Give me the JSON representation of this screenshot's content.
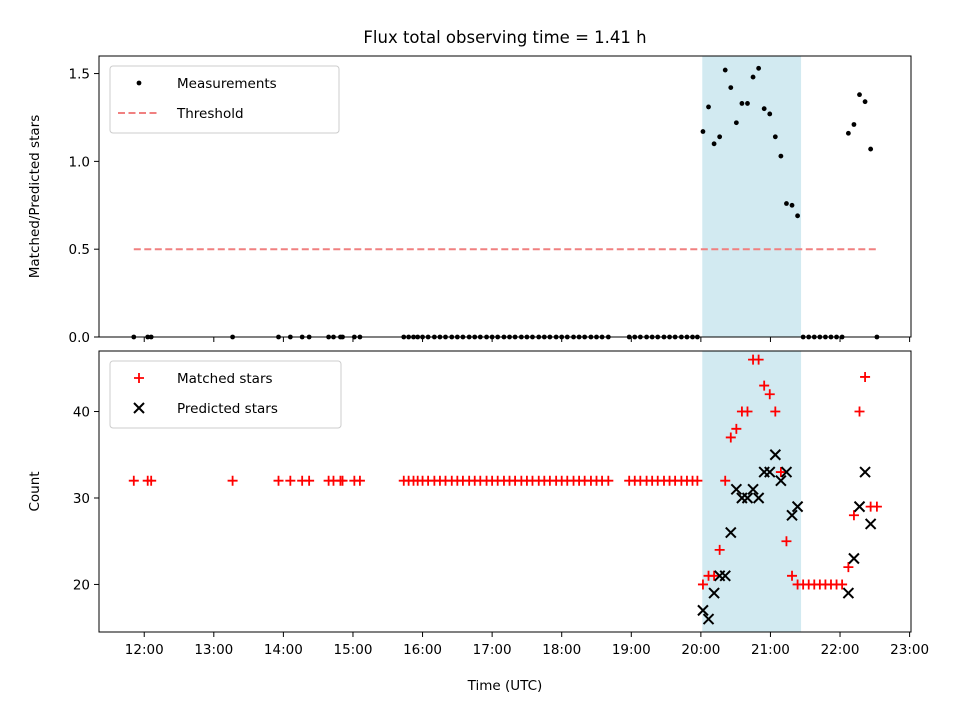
{
  "chart_data": {
    "title": "Flux total observing time = 1.41 h",
    "xlabel": "Time (UTC)",
    "xlim": [
      11.35,
      23.02
    ],
    "xticks": [
      12,
      13,
      14,
      15,
      16,
      17,
      18,
      19,
      20,
      21,
      22,
      23
    ],
    "xtick_labels": [
      "12:00",
      "13:00",
      "14:00",
      "15:00",
      "16:00",
      "17:00",
      "18:00",
      "19:00",
      "20:00",
      "21:00",
      "22:00",
      "23:00"
    ],
    "shaded_span": {
      "x0": 20.02,
      "x1": 21.44,
      "color": "#add8e6"
    },
    "panels": [
      {
        "type": "scatter",
        "ylabel": "Matched/Predicted stars",
        "ylim": [
          0,
          1.6
        ],
        "yticks": [
          0.0,
          0.5,
          1.0,
          1.5
        ],
        "ytick_labels": [
          "0.0",
          "0.5",
          "1.0",
          "1.5"
        ],
        "legend": {
          "position": "upper-left"
        },
        "series": [
          {
            "name": "Measurements",
            "marker": "dot",
            "color": "#000000",
            "points": [
              [
                11.85,
                0
              ],
              [
                12.05,
                0
              ],
              [
                12.1,
                0
              ],
              [
                13.27,
                0
              ],
              [
                13.93,
                0
              ],
              [
                14.1,
                0
              ],
              [
                14.27,
                0
              ],
              [
                14.37,
                0
              ],
              [
                14.65,
                0
              ],
              [
                14.72,
                0
              ],
              [
                14.82,
                0
              ],
              [
                14.85,
                0
              ],
              [
                15.02,
                0
              ],
              [
                15.1,
                0
              ],
              [
                15.73,
                0
              ],
              [
                15.8,
                0
              ],
              [
                15.87,
                0
              ],
              [
                15.93,
                0
              ],
              [
                16.0,
                0
              ],
              [
                16.08,
                0
              ],
              [
                16.17,
                0
              ],
              [
                16.25,
                0
              ],
              [
                16.33,
                0
              ],
              [
                16.42,
                0
              ],
              [
                16.5,
                0
              ],
              [
                16.58,
                0
              ],
              [
                16.67,
                0
              ],
              [
                16.75,
                0
              ],
              [
                16.83,
                0
              ],
              [
                16.92,
                0
              ],
              [
                17.0,
                0
              ],
              [
                17.08,
                0
              ],
              [
                17.17,
                0
              ],
              [
                17.25,
                0
              ],
              [
                17.33,
                0
              ],
              [
                17.42,
                0
              ],
              [
                17.5,
                0
              ],
              [
                17.58,
                0
              ],
              [
                17.67,
                0
              ],
              [
                17.75,
                0
              ],
              [
                17.83,
                0
              ],
              [
                17.92,
                0
              ],
              [
                18.0,
                0
              ],
              [
                18.08,
                0
              ],
              [
                18.17,
                0
              ],
              [
                18.25,
                0
              ],
              [
                18.33,
                0
              ],
              [
                18.42,
                0
              ],
              [
                18.5,
                0
              ],
              [
                18.58,
                0
              ],
              [
                18.67,
                0
              ],
              [
                18.97,
                0
              ],
              [
                19.05,
                0
              ],
              [
                19.13,
                0
              ],
              [
                19.22,
                0
              ],
              [
                19.3,
                0
              ],
              [
                19.38,
                0
              ],
              [
                19.47,
                0
              ],
              [
                19.55,
                0
              ],
              [
                19.63,
                0
              ],
              [
                19.72,
                0
              ],
              [
                19.8,
                0
              ],
              [
                19.88,
                0
              ],
              [
                19.95,
                0
              ],
              [
                20.03,
                1.17
              ],
              [
                20.11,
                1.31
              ],
              [
                20.19,
                1.1
              ],
              [
                20.27,
                1.14
              ],
              [
                20.35,
                1.52
              ],
              [
                20.43,
                1.42
              ],
              [
                20.51,
                1.22
              ],
              [
                20.59,
                1.33
              ],
              [
                20.67,
                1.33
              ],
              [
                20.75,
                1.48
              ],
              [
                20.83,
                1.53
              ],
              [
                20.91,
                1.3
              ],
              [
                20.99,
                1.27
              ],
              [
                21.07,
                1.14
              ],
              [
                21.15,
                1.03
              ],
              [
                21.23,
                0.76
              ],
              [
                21.31,
                0.75
              ],
              [
                21.39,
                0.69
              ],
              [
                21.47,
                0
              ],
              [
                21.55,
                0
              ],
              [
                21.63,
                0
              ],
              [
                21.71,
                0
              ],
              [
                21.79,
                0
              ],
              [
                21.87,
                0
              ],
              [
                21.95,
                0
              ],
              [
                22.03,
                0
              ],
              [
                22.12,
                1.16
              ],
              [
                22.2,
                1.21
              ],
              [
                22.28,
                1.38
              ],
              [
                22.36,
                1.34
              ],
              [
                22.44,
                1.07
              ],
              [
                22.53,
                0
              ]
            ]
          },
          {
            "name": "Threshold",
            "style": "dashed-line",
            "color": "#f08080",
            "points": [
              [
                11.85,
                0.5
              ],
              [
                22.53,
                0.5
              ]
            ]
          }
        ]
      },
      {
        "type": "scatter",
        "ylabel": "Count",
        "ylim": [
          14.5,
          47
        ],
        "yticks": [
          20,
          30,
          40
        ],
        "ytick_labels": [
          "20",
          "30",
          "40"
        ],
        "legend": {
          "position": "upper-left"
        },
        "series": [
          {
            "name": "Matched stars",
            "marker": "plus",
            "color": "#ff0000",
            "points": [
              [
                11.85,
                32
              ],
              [
                12.05,
                32
              ],
              [
                12.1,
                32
              ],
              [
                13.27,
                32
              ],
              [
                13.93,
                32
              ],
              [
                14.1,
                32
              ],
              [
                14.27,
                32
              ],
              [
                14.37,
                32
              ],
              [
                14.65,
                32
              ],
              [
                14.72,
                32
              ],
              [
                14.82,
                32
              ],
              [
                14.85,
                32
              ],
              [
                15.02,
                32
              ],
              [
                15.1,
                32
              ],
              [
                15.73,
                32
              ],
              [
                15.8,
                32
              ],
              [
                15.87,
                32
              ],
              [
                15.93,
                32
              ],
              [
                16.0,
                32
              ],
              [
                16.08,
                32
              ],
              [
                16.17,
                32
              ],
              [
                16.25,
                32
              ],
              [
                16.33,
                32
              ],
              [
                16.42,
                32
              ],
              [
                16.5,
                32
              ],
              [
                16.58,
                32
              ],
              [
                16.67,
                32
              ],
              [
                16.75,
                32
              ],
              [
                16.83,
                32
              ],
              [
                16.92,
                32
              ],
              [
                17.0,
                32
              ],
              [
                17.08,
                32
              ],
              [
                17.17,
                32
              ],
              [
                17.25,
                32
              ],
              [
                17.33,
                32
              ],
              [
                17.42,
                32
              ],
              [
                17.5,
                32
              ],
              [
                17.58,
                32
              ],
              [
                17.67,
                32
              ],
              [
                17.75,
                32
              ],
              [
                17.83,
                32
              ],
              [
                17.92,
                32
              ],
              [
                18.0,
                32
              ],
              [
                18.08,
                32
              ],
              [
                18.17,
                32
              ],
              [
                18.25,
                32
              ],
              [
                18.33,
                32
              ],
              [
                18.42,
                32
              ],
              [
                18.5,
                32
              ],
              [
                18.58,
                32
              ],
              [
                18.67,
                32
              ],
              [
                18.97,
                32
              ],
              [
                19.05,
                32
              ],
              [
                19.13,
                32
              ],
              [
                19.22,
                32
              ],
              [
                19.3,
                32
              ],
              [
                19.38,
                32
              ],
              [
                19.47,
                32
              ],
              [
                19.55,
                32
              ],
              [
                19.63,
                32
              ],
              [
                19.72,
                32
              ],
              [
                19.8,
                32
              ],
              [
                19.88,
                32
              ],
              [
                19.95,
                32
              ],
              [
                20.03,
                20
              ],
              [
                20.11,
                21
              ],
              [
                20.19,
                21
              ],
              [
                20.27,
                24
              ],
              [
                20.35,
                32
              ],
              [
                20.43,
                37
              ],
              [
                20.51,
                38
              ],
              [
                20.59,
                40
              ],
              [
                20.67,
                40
              ],
              [
                20.75,
                46
              ],
              [
                20.83,
                46
              ],
              [
                20.91,
                43
              ],
              [
                20.99,
                42
              ],
              [
                21.07,
                40
              ],
              [
                21.15,
                33
              ],
              [
                21.23,
                25
              ],
              [
                21.31,
                21
              ],
              [
                21.39,
                20
              ],
              [
                21.47,
                20
              ],
              [
                21.55,
                20
              ],
              [
                21.63,
                20
              ],
              [
                21.71,
                20
              ],
              [
                21.79,
                20
              ],
              [
                21.87,
                20
              ],
              [
                21.95,
                20
              ],
              [
                22.03,
                20
              ],
              [
                22.12,
                22
              ],
              [
                22.2,
                28
              ],
              [
                22.28,
                40
              ],
              [
                22.36,
                44
              ],
              [
                22.44,
                29
              ],
              [
                22.53,
                29
              ]
            ]
          },
          {
            "name": "Predicted stars",
            "marker": "x",
            "color": "#000000",
            "points": [
              [
                20.03,
                17
              ],
              [
                20.11,
                16
              ],
              [
                20.19,
                19
              ],
              [
                20.27,
                21
              ],
              [
                20.35,
                21
              ],
              [
                20.43,
                26
              ],
              [
                20.51,
                31
              ],
              [
                20.59,
                30
              ],
              [
                20.67,
                30
              ],
              [
                20.75,
                31
              ],
              [
                20.83,
                30
              ],
              [
                20.91,
                33
              ],
              [
                20.99,
                33
              ],
              [
                21.07,
                35
              ],
              [
                21.15,
                32
              ],
              [
                21.23,
                33
              ],
              [
                21.31,
                28
              ],
              [
                21.39,
                29
              ],
              [
                22.12,
                19
              ],
              [
                22.2,
                23
              ],
              [
                22.28,
                29
              ],
              [
                22.36,
                33
              ],
              [
                22.44,
                27
              ]
            ]
          }
        ]
      }
    ]
  }
}
